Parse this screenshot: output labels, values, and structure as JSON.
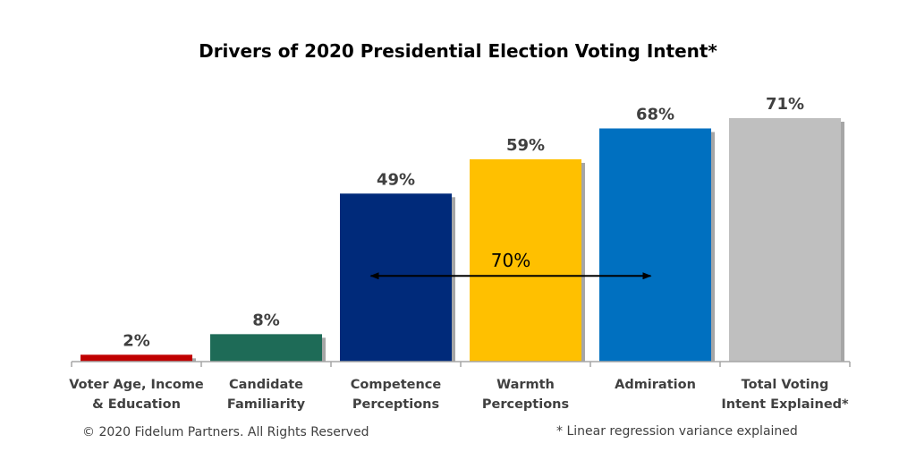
{
  "chart_data": {
    "type": "bar",
    "title": "Drivers of 2020 Presidential Election Voting Intent*",
    "categories": [
      [
        "Voter Age, Income",
        "& Education"
      ],
      [
        "Candidate",
        "Familiarity"
      ],
      [
        "Competence",
        "Perceptions"
      ],
      [
        "Warmth",
        "Perceptions"
      ],
      [
        "Admiration"
      ],
      [
        "Total Voting",
        "Intent Explained*"
      ]
    ],
    "values": [
      2,
      8,
      49,
      59,
      68,
      71
    ],
    "value_labels": [
      "2%",
      "8%",
      "49%",
      "59%",
      "68%",
      "71%"
    ],
    "colors": [
      "#c00000",
      "#1e6b57",
      "#002a7a",
      "#ffc000",
      "#0070c0",
      "#bfbfbf"
    ],
    "ylim": [
      0,
      80
    ],
    "grid": false,
    "annotation": {
      "text": "70%",
      "from_category": 2,
      "to_category": 4,
      "arrow_value": 25
    }
  },
  "footer": {
    "copyright": "© 2020 Fidelum Partners. All Rights Reserved",
    "note": "* Linear regression variance explained"
  }
}
